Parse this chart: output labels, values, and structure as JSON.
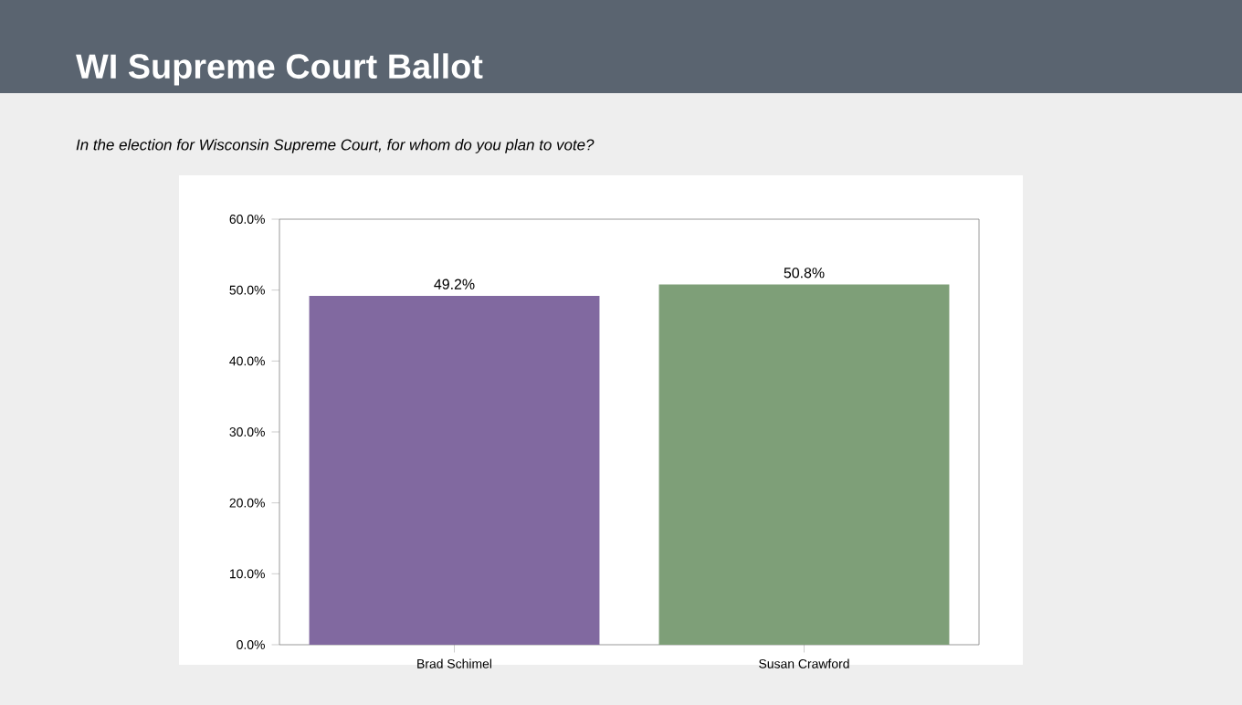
{
  "chart_data": {
    "type": "bar",
    "title": "WI Supreme Court Ballot",
    "subtitle": "In the election for Wisconsin Supreme Court, for whom do you plan to vote?",
    "categories": [
      "Brad Schimel",
      "Susan Crawford"
    ],
    "values": [
      49.2,
      50.8
    ],
    "colors": [
      "#8169a0",
      "#7e9f78"
    ],
    "value_labels": [
      "49.2%",
      "50.8%"
    ],
    "ylim": [
      0,
      60
    ],
    "yticks": [
      {
        "value": 0,
        "label": "0.0%"
      },
      {
        "value": 10,
        "label": "10.0%"
      },
      {
        "value": 20,
        "label": "20.0%"
      },
      {
        "value": 30,
        "label": "30.0%"
      },
      {
        "value": 40,
        "label": "40.0%"
      },
      {
        "value": 50,
        "label": "50.0%"
      },
      {
        "value": 60,
        "label": "60.0%"
      }
    ],
    "grid": false
  }
}
